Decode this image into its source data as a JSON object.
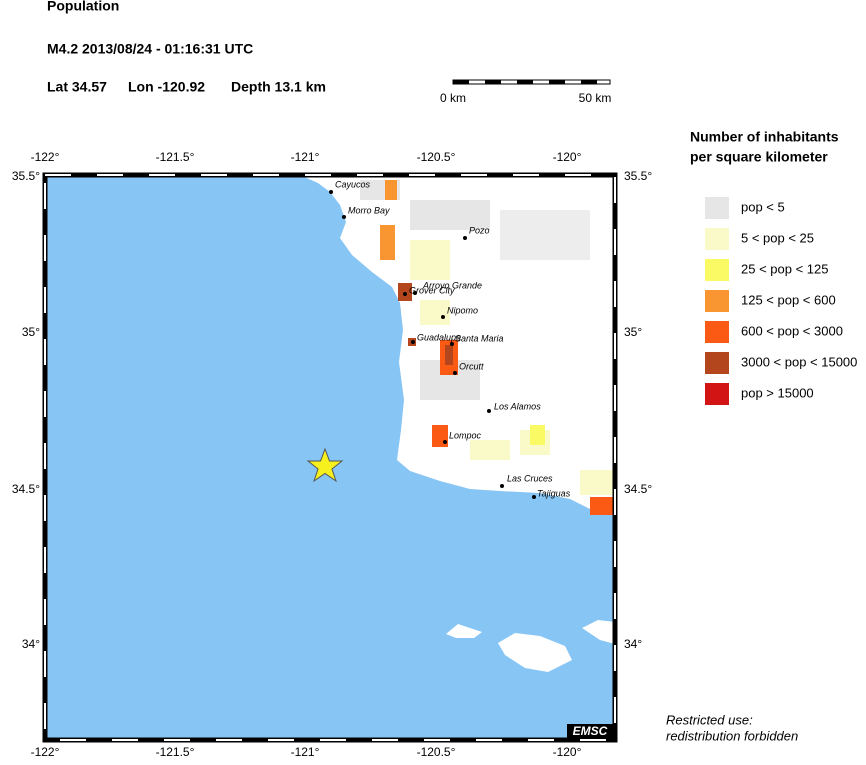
{
  "header": {
    "title": "Population",
    "event": "M4.2  2013/08/24 - 01:16:31 UTC",
    "lat": "Lat 34.57",
    "lon": "Lon -120.92",
    "depth": "Depth  13.1 km"
  },
  "scale_bar": {
    "start": "0 km",
    "end": "50 km"
  },
  "legend": {
    "title_lines": [
      "Number of inhabitants",
      "per square kilometer"
    ],
    "items": [
      {
        "label": "pop < 5",
        "color": "#e6e6e6"
      },
      {
        "label": "5 < pop < 25",
        "color": "#fafac8"
      },
      {
        "label": "25 < pop < 125",
        "color": "#fafa64"
      },
      {
        "label": "125 < pop < 600",
        "color": "#fa9632"
      },
      {
        "label": "600 < pop < 3000",
        "color": "#fa5a14"
      },
      {
        "label": "3000 < pop < 15000",
        "color": "#b4461e"
      },
      {
        "label": "pop > 15000",
        "color": "#d21414"
      }
    ]
  },
  "map": {
    "lon_ticks": [
      "-122°",
      "-121.5°",
      "-121°",
      "-120.5°",
      "-120°"
    ],
    "lat_ticks": [
      "35.5°",
      "35°",
      "34.5°",
      "34°"
    ],
    "cities": [
      "Cayucos",
      "Morro Bay",
      "Pozo",
      "Arroyo Grande",
      "Grover City",
      "Nipomo",
      "Guadalupe",
      "Santa Maria",
      "Orcutt",
      "Los Alamos",
      "Lompoc",
      "Las Cruces",
      "Tajiguas"
    ],
    "credit": "EMSC"
  },
  "footer": {
    "lines": [
      "Restricted use:",
      "redistribution forbidden"
    ]
  }
}
